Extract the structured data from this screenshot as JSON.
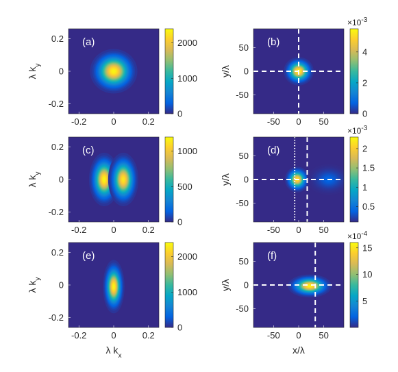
{
  "colormap": "parula",
  "colormap_stops": [
    "#352a87",
    "#0363e1",
    "#1485d4",
    "#06a7c6",
    "#38b99e",
    "#92bf73",
    "#d9ba56",
    "#fcce2e",
    "#f9fb0e"
  ],
  "tick_color": "#262626",
  "marker_color": "#ffffff",
  "chart_data": [
    {
      "type": "heatmap",
      "panel": "(a)",
      "xlabel": "",
      "ylabel": "λ k_y",
      "xlim": [
        -0.26,
        0.26
      ],
      "ylim": [
        -0.26,
        0.26
      ],
      "xticks": [
        -0.2,
        0,
        0.2
      ],
      "xtick_labels": [
        "-0.2",
        "0",
        "0.2"
      ],
      "yticks": [
        -0.2,
        0,
        0.2
      ],
      "ytick_labels": [
        "-0.2",
        "0",
        "0.2"
      ],
      "colorbar": {
        "min": 0,
        "max": 2400,
        "ticks": [
          0,
          1000,
          2000
        ],
        "tick_labels": [
          "0",
          "1000",
          "2000"
        ],
        "exponent": ""
      },
      "blobs": [
        {
          "x": 0,
          "y": 0,
          "sx": 0.05,
          "sy": 0.05,
          "amp": 2400
        }
      ],
      "markers": []
    },
    {
      "type": "heatmap",
      "panel": "(b)",
      "xlabel": "",
      "ylabel": "y/λ",
      "xlim": [
        -90,
        90
      ],
      "ylim": [
        -90,
        90
      ],
      "xticks": [
        -50,
        0,
        50
      ],
      "xtick_labels": [
        "-50",
        "0",
        "50"
      ],
      "yticks": [
        -50,
        0,
        50
      ],
      "ytick_labels": [
        "-50",
        "0",
        "50"
      ],
      "colorbar": {
        "min": 0,
        "max": 0.0055,
        "ticks": [
          0,
          0.002,
          0.004
        ],
        "tick_labels": [
          "0",
          "2",
          "4"
        ],
        "exponent": "×10-3"
      },
      "blobs": [
        {
          "x": 0,
          "y": 0,
          "sx": 11,
          "sy": 11,
          "amp": 0.0055
        }
      ],
      "markers": [
        {
          "orient": "v",
          "value": 0,
          "style": "dash"
        },
        {
          "orient": "h",
          "value": 0,
          "style": "dash"
        }
      ]
    },
    {
      "type": "heatmap",
      "panel": "(c)",
      "xlabel": "",
      "ylabel": "λ k_y",
      "xlim": [
        -0.26,
        0.26
      ],
      "ylim": [
        -0.26,
        0.26
      ],
      "xticks": [
        -0.2,
        0,
        0.2
      ],
      "xtick_labels": [
        "-0.2",
        "0",
        "0.2"
      ],
      "yticks": [
        -0.2,
        0,
        0.2
      ],
      "ytick_labels": [
        "-0.2",
        "0",
        "0.2"
      ],
      "colorbar": {
        "min": 0,
        "max": 1200,
        "ticks": [
          0,
          500,
          1000
        ],
        "tick_labels": [
          "0",
          "500",
          "1000"
        ],
        "exponent": ""
      },
      "blobs": [
        {
          "x": -0.055,
          "y": 0,
          "sx": 0.032,
          "sy": 0.06,
          "amp": 1200
        },
        {
          "x": 0.055,
          "y": 0,
          "sx": 0.032,
          "sy": 0.06,
          "amp": 1150
        }
      ],
      "markers": []
    },
    {
      "type": "heatmap",
      "panel": "(d)",
      "xlabel": "",
      "ylabel": "y/λ",
      "xlim": [
        -90,
        90
      ],
      "ylim": [
        -90,
        90
      ],
      "xticks": [
        -50,
        0,
        50
      ],
      "xtick_labels": [
        "-50",
        "0",
        "50"
      ],
      "yticks": [
        -50,
        0,
        50
      ],
      "ytick_labels": [
        "-50",
        "0",
        "50"
      ],
      "colorbar": {
        "min": 0.0001,
        "max": 0.0023,
        "ticks": [
          0.0005,
          0.001,
          0.0015,
          0.002
        ],
        "tick_labels": [
          "0.5",
          "1",
          "1.5",
          "2"
        ],
        "exponent": "×10-3"
      },
      "blobs": [
        {
          "x": -3,
          "y": 0,
          "sx": 9,
          "sy": 10,
          "amp": 0.0022
        },
        {
          "x": 60,
          "y": 0,
          "sx": 16,
          "sy": 12,
          "amp": 0.0004
        }
      ],
      "markers": [
        {
          "orient": "v",
          "value": -8,
          "style": "dot"
        },
        {
          "orient": "v",
          "value": 17,
          "style": "dash"
        },
        {
          "orient": "h",
          "value": 0,
          "style": "dash"
        }
      ]
    },
    {
      "type": "heatmap",
      "panel": "(e)",
      "xlabel": "λ k_x",
      "ylabel": "λ k_y",
      "xlim": [
        -0.26,
        0.26
      ],
      "ylim": [
        -0.26,
        0.26
      ],
      "xticks": [
        -0.2,
        0,
        0.2
      ],
      "xtick_labels": [
        "-0.2",
        "0",
        "0.2"
      ],
      "yticks": [
        -0.2,
        0,
        0.2
      ],
      "ytick_labels": [
        "-0.2",
        "0",
        "0.2"
      ],
      "colorbar": {
        "min": 0,
        "max": 2400,
        "ticks": [
          0,
          1000,
          2000
        ],
        "tick_labels": [
          "0",
          "1000",
          "2000"
        ],
        "exponent": ""
      },
      "blobs": [
        {
          "x": 0,
          "y": -0.01,
          "sx": 0.023,
          "sy": 0.06,
          "amp": 2400
        }
      ],
      "markers": []
    },
    {
      "type": "heatmap",
      "panel": "(f)",
      "xlabel": "x/λ",
      "ylabel": "y/λ",
      "xlim": [
        -90,
        90
      ],
      "ylim": [
        -90,
        90
      ],
      "xticks": [
        -50,
        0,
        50
      ],
      "xtick_labels": [
        "-50",
        "0",
        "50"
      ],
      "yticks": [
        -50,
        0,
        50
      ],
      "ytick_labels": [
        "-50",
        "0",
        "50"
      ],
      "colorbar": {
        "min": 0,
        "max": 0.0016,
        "ticks": [
          0.0005,
          0.001,
          0.0015
        ],
        "tick_labels": [
          "5",
          "10",
          "15"
        ],
        "exponent": "×10-4"
      },
      "blobs": [
        {
          "x": 22,
          "y": -2,
          "sx": 16,
          "sy": 9,
          "amp": 0.0016
        }
      ],
      "markers": [
        {
          "orient": "v",
          "value": 33,
          "style": "dash"
        },
        {
          "orient": "h",
          "value": 0,
          "style": "dash"
        }
      ]
    }
  ]
}
